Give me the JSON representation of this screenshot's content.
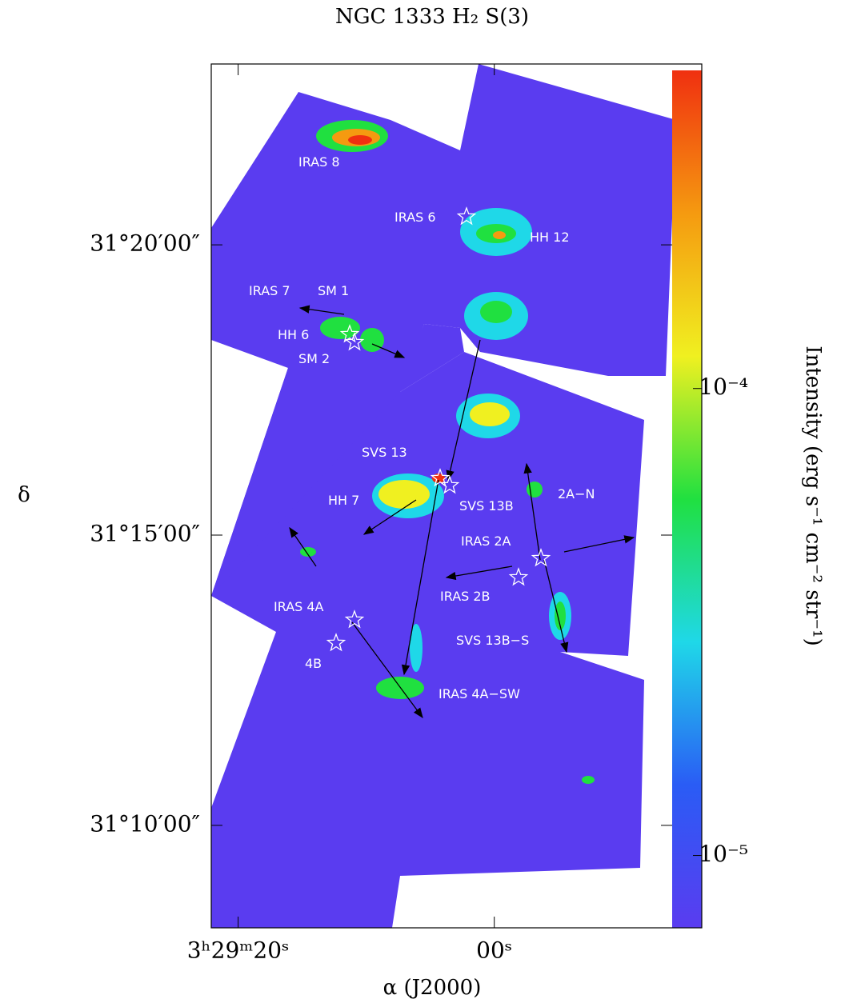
{
  "chart_data": {
    "type": "image",
    "title": "NGC 1333 H₂ S(3)",
    "x_label": "α (J2000)",
    "y_label": "δ",
    "xlim": [
      22.1,
      -16.2
    ],
    "xticks": [
      {
        "value": 20,
        "label": "3ʰ29ᵐ20ˢ"
      },
      {
        "value": 0,
        "label": "00ˢ"
      }
    ],
    "ylim": [
      31.1373,
      31.3852
    ],
    "yticks": [
      {
        "value": 31.3333,
        "label": "31°20′00″"
      },
      {
        "value": 31.25,
        "label": "31°15′00″"
      },
      {
        "value": 31.1667,
        "label": "31°10′00″"
      }
    ],
    "colorbar": {
      "label": "Intensity (erg s⁻¹ cm⁻² str⁻¹)",
      "log_scale": true,
      "lim": [
        7e-06,
        0.00048
      ],
      "ticks": [
        {
          "value": 0.0001,
          "label": "10⁻⁴"
        },
        {
          "value": 1e-05,
          "label": "10⁻⁵"
        }
      ],
      "colors": [
        "#5a3cf0",
        "#2a5cf5",
        "#1fd8e8",
        "#20e040",
        "#f0f020",
        "#f59a10",
        "#f03010"
      ]
    },
    "annotations": [
      "IRAS 8",
      "IRAS 6",
      "HH 12",
      "IRAS 7",
      "SM 1",
      "HH 6",
      "SM 2",
      "SVS 13",
      "HH 7",
      "SVS 13B",
      "2A−N",
      "IRAS 2A",
      "IRAS 2B",
      "IRAS 4A",
      "4B",
      "SVS 13B−S",
      "IRAS 4A−SW"
    ]
  }
}
